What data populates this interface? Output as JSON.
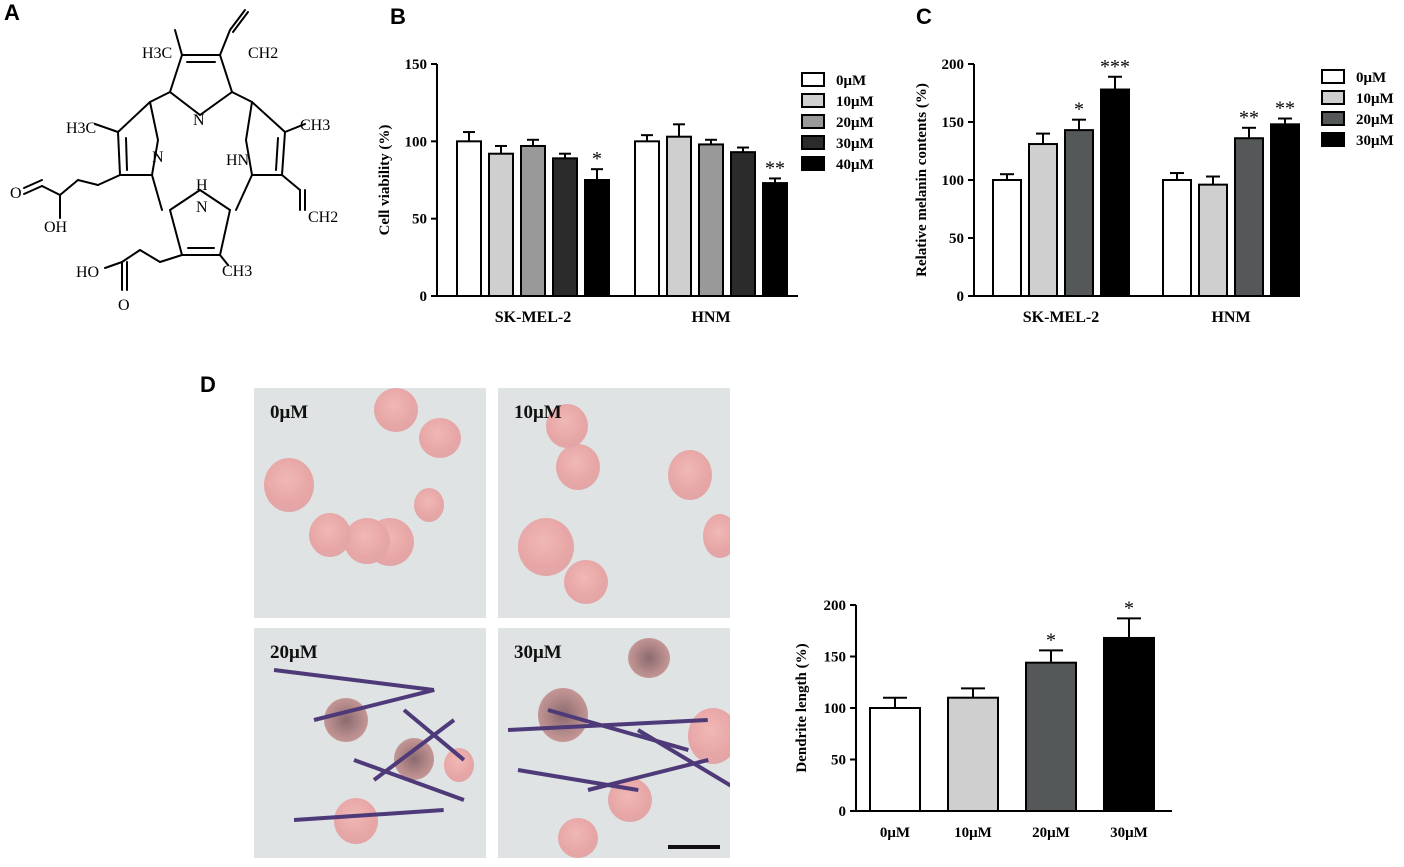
{
  "panels": {
    "a": "A",
    "b": "B",
    "c": "C",
    "d": "D"
  },
  "molecule": {
    "labels": [
      "H3C",
      "CH2",
      "N",
      "H3C",
      "CH3",
      "N",
      "HN",
      "CH2",
      "N",
      "O",
      "OH",
      "HO",
      "O",
      "CH3",
      "H"
    ]
  },
  "micrographs": [
    {
      "label": "0μM"
    },
    {
      "label": "10μM"
    },
    {
      "label": "20μM"
    },
    {
      "label": "30μM"
    }
  ],
  "colors": {
    "c0": "#ffffff",
    "c10": "#cfcfcf",
    "c20": "#999999",
    "c30": "#2b2b2b",
    "c40": "#000000",
    "c20c": "#555858"
  },
  "chart_data": [
    {
      "type": "bar",
      "ylabel": "Cell viability (%)",
      "ylim": [
        0,
        150
      ],
      "yticks": [
        0,
        50,
        100,
        150
      ],
      "categories": [
        "SK-MEL-2",
        "HNM"
      ],
      "legend": "top-right",
      "series": [
        {
          "name": "0μM",
          "values": [
            100,
            100
          ],
          "err": [
            6,
            4
          ],
          "sig": [
            "",
            ""
          ],
          "color": "#ffffff"
        },
        {
          "name": "10μM",
          "values": [
            92,
            103
          ],
          "err": [
            5,
            8
          ],
          "sig": [
            "",
            ""
          ],
          "color": "#cfcfcf"
        },
        {
          "name": "20μM",
          "values": [
            97,
            98
          ],
          "err": [
            4,
            3
          ],
          "sig": [
            "",
            ""
          ],
          "color": "#999999"
        },
        {
          "name": "30μM",
          "values": [
            89,
            93
          ],
          "err": [
            3,
            3
          ],
          "sig": [
            "",
            ""
          ],
          "color": "#2b2b2b"
        },
        {
          "name": "40μM",
          "values": [
            75,
            73
          ],
          "err": [
            7,
            3
          ],
          "sig": [
            "*",
            "**"
          ],
          "color": "#000000"
        }
      ]
    },
    {
      "type": "bar",
      "ylabel": "Relative melanin contents (%)",
      "ylim": [
        0,
        200
      ],
      "yticks": [
        0,
        50,
        100,
        150,
        200
      ],
      "categories": [
        "SK-MEL-2",
        "HNM"
      ],
      "legend": "top-right",
      "series": [
        {
          "name": "0μM",
          "values": [
            100,
            100
          ],
          "err": [
            5,
            6
          ],
          "sig": [
            "",
            ""
          ],
          "color": "#ffffff"
        },
        {
          "name": "10μM",
          "values": [
            131,
            96
          ],
          "err": [
            9,
            7
          ],
          "sig": [
            "",
            ""
          ],
          "color": "#cfcfcf"
        },
        {
          "name": "20μM",
          "values": [
            143,
            136
          ],
          "err": [
            9,
            9
          ],
          "sig": [
            "*",
            "**"
          ],
          "color": "#555858"
        },
        {
          "name": "30μM",
          "values": [
            178,
            148
          ],
          "err": [
            11,
            5
          ],
          "sig": [
            "***",
            "**"
          ],
          "color": "#000000"
        }
      ]
    },
    {
      "type": "bar",
      "ylabel": "Dendrite length (%)",
      "ylim": [
        0,
        200
      ],
      "yticks": [
        0,
        50,
        100,
        150,
        200
      ],
      "categories": [
        "0μM",
        "10μM",
        "20μM",
        "30μM"
      ],
      "values": [
        100,
        110,
        144,
        168
      ],
      "err": [
        10,
        9,
        12,
        19
      ],
      "sig": [
        "",
        "",
        "*",
        "*"
      ],
      "colors": [
        "#ffffff",
        "#cfcfcf",
        "#555858",
        "#000000"
      ]
    }
  ]
}
